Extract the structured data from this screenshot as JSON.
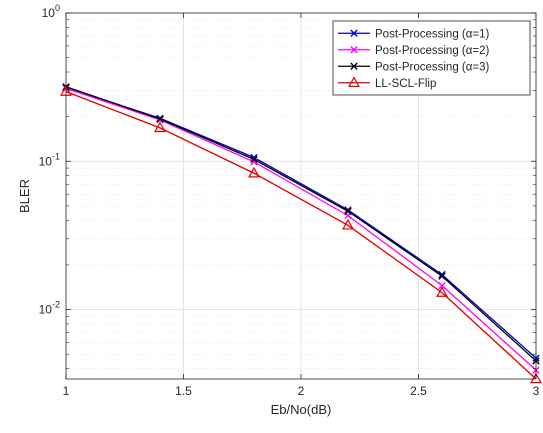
{
  "chart_data": {
    "type": "line",
    "xlabel": "Eb/No(dB)",
    "ylabel": "BLER",
    "xlim": [
      1,
      3
    ],
    "ylim": [
      0.0034,
      1
    ],
    "yscale": "log",
    "grid": true,
    "legend_location": "top-right",
    "x_ticks": [
      1,
      1.5,
      2,
      2.5,
      3
    ],
    "x_tick_labels": [
      "1",
      "1.5",
      "2",
      "2.5",
      "3"
    ],
    "y_ticks": [
      {
        "value": 1,
        "base": "10",
        "exp": "0"
      },
      {
        "value": 0.1,
        "base": "10",
        "exp": "-1"
      },
      {
        "value": 0.01,
        "base": "10",
        "exp": "-2"
      }
    ],
    "x": [
      1.0,
      1.4,
      1.8,
      2.2,
      2.6,
      3.0
    ],
    "series": [
      {
        "name": "Post-Processing (α=1)",
        "color": "#0000cc",
        "marker": "x",
        "values": [
          0.315,
          0.195,
          0.106,
          0.047,
          0.0172,
          0.0047
        ]
      },
      {
        "name": "Post-Processing (α=2)",
        "color": "#ff00ff",
        "marker": "x",
        "values": [
          0.31,
          0.19,
          0.099,
          0.043,
          0.0145,
          0.0039
        ]
      },
      {
        "name": "Post-Processing (α=3)",
        "color": "#000000",
        "marker": "x",
        "values": [
          0.318,
          0.193,
          0.103,
          0.046,
          0.0168,
          0.0045
        ]
      },
      {
        "name": "LL-SCL-Flip",
        "color": "#e00000",
        "marker": "triangle",
        "values": [
          0.295,
          0.168,
          0.083,
          0.037,
          0.013,
          0.0034
        ]
      }
    ]
  }
}
